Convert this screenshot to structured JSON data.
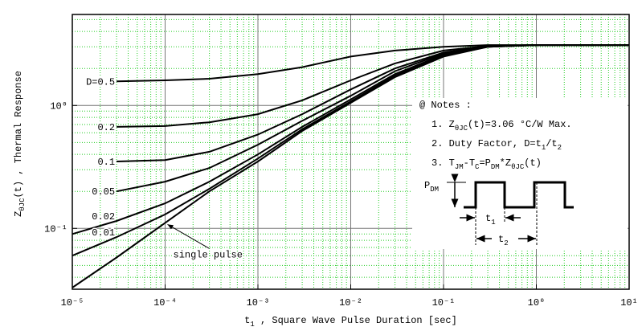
{
  "chart_data": {
    "type": "line",
    "x_label": [
      {
        "text": "t"
      },
      {
        "text": "1",
        "sub": true
      },
      {
        "text": " , Square Wave Pulse Duration   [sec]"
      }
    ],
    "y_label": [
      {
        "text": "Z"
      },
      {
        "text": "θJC",
        "sub": true
      },
      {
        "text": "(t)  ,  Thermal Response"
      }
    ],
    "log_x": true,
    "log_y": true,
    "grid": true,
    "minor_grid": true,
    "xlim": [
      1e-05,
      10
    ],
    "ylim": [
      0.032,
      5.5
    ],
    "xticks": [
      {
        "value": 1e-05,
        "label": "10⁻⁵"
      },
      {
        "value": 0.0001,
        "label": "10⁻⁴"
      },
      {
        "value": 0.001,
        "label": "10⁻³"
      },
      {
        "value": 0.01,
        "label": "10⁻²"
      },
      {
        "value": 0.1,
        "label": "10⁻¹"
      },
      {
        "value": 1,
        "label": "10⁰"
      },
      {
        "value": 10,
        "label": "10¹"
      }
    ],
    "yticks": [
      {
        "value": 0.1,
        "label": "10⁻¹"
      },
      {
        "value": 1,
        "label": "10⁰"
      }
    ],
    "x": [
      1e-05,
      3e-05,
      0.0001,
      0.0003,
      0.001,
      0.003,
      0.01,
      0.03,
      0.1,
      0.3,
      1,
      10
    ],
    "series": [
      {
        "name": "D=0.5",
        "color": "#000000",
        "values": [
          null,
          1.57,
          1.6,
          1.65,
          1.8,
          2.05,
          2.5,
          2.8,
          3.0,
          3.1,
          3.1,
          3.1
        ]
      },
      {
        "name": "0.2",
        "color": "#000000",
        "values": [
          null,
          0.67,
          0.68,
          0.73,
          0.85,
          1.1,
          1.6,
          2.2,
          2.8,
          3.05,
          3.1,
          3.1
        ]
      },
      {
        "name": "0.1",
        "color": "#000000",
        "values": [
          null,
          0.35,
          0.36,
          0.42,
          0.58,
          0.85,
          1.35,
          2.0,
          2.7,
          3.05,
          3.1,
          3.1
        ]
      },
      {
        "name": "0.05",
        "color": "#000000",
        "values": [
          null,
          0.2,
          0.24,
          0.31,
          0.48,
          0.75,
          1.2,
          1.9,
          2.65,
          3.05,
          3.1,
          3.1
        ]
      },
      {
        "name": "0.02",
        "color": "#000000",
        "values": [
          0.09,
          0.115,
          0.16,
          0.24,
          0.4,
          0.67,
          1.12,
          1.8,
          2.6,
          3.0,
          3.1,
          3.1
        ]
      },
      {
        "name": "0.01",
        "color": "#000000",
        "values": [
          0.06,
          0.085,
          0.13,
          0.21,
          0.37,
          0.64,
          1.08,
          1.75,
          2.55,
          3.0,
          3.1,
          3.1
        ]
      },
      {
        "name": "single pulse",
        "color": "#000000",
        "values": [
          0.033,
          0.058,
          0.111,
          0.2,
          0.35,
          0.62,
          1.05,
          1.7,
          2.5,
          3.0,
          3.1,
          3.1
        ]
      }
    ],
    "notes": [
      [
        {
          "text": "@ Notes :"
        }
      ],
      [
        {
          "text": "1. Z"
        },
        {
          "text": "θJC",
          "sub": true
        },
        {
          "text": "(t)=3.06 °C/W Max."
        }
      ],
      [
        {
          "text": "2. Duty Factor, D=t"
        },
        {
          "text": "1",
          "sub": true
        },
        {
          "text": "/t"
        },
        {
          "text": "2",
          "sub": true
        }
      ],
      [
        {
          "text": "3. T"
        },
        {
          "text": "JM",
          "sub": true
        },
        {
          "text": "-T"
        },
        {
          "text": "C",
          "sub": true
        },
        {
          "text": "=P"
        },
        {
          "text": "DM",
          "sub": true
        },
        {
          "text": "*Z"
        },
        {
          "text": "θJC",
          "sub": true
        },
        {
          "text": "(t)"
        }
      ]
    ],
    "pulse_labels": {
      "pdm": [
        {
          "text": "P"
        },
        {
          "text": "DM",
          "sub": true
        }
      ],
      "t1": [
        {
          "text": "t"
        },
        {
          "text": "1",
          "sub": true
        }
      ],
      "t2": [
        {
          "text": "t"
        },
        {
          "text": "2",
          "sub": true
        }
      ]
    }
  }
}
